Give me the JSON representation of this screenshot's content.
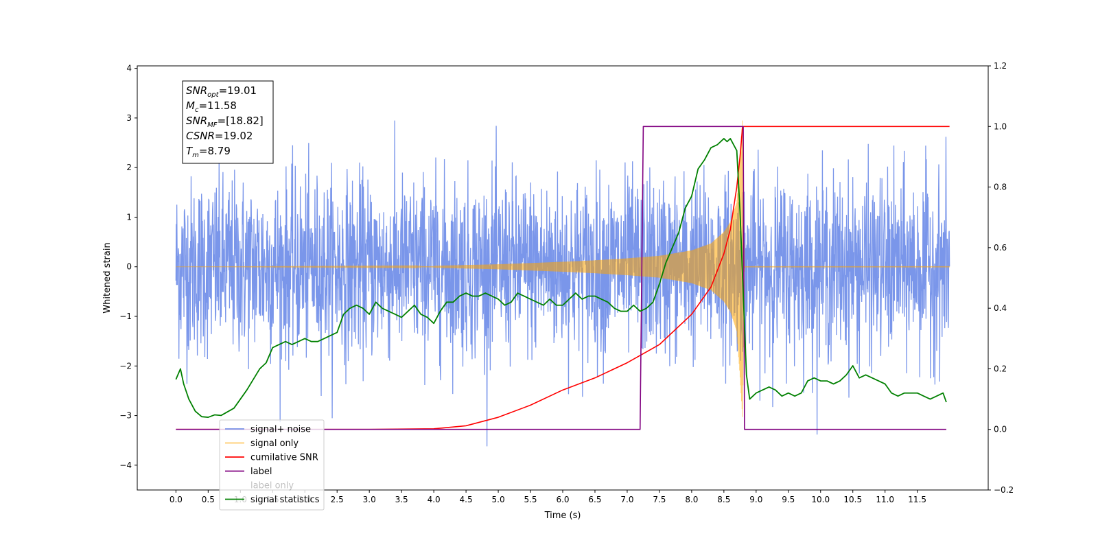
{
  "chart_data": {
    "type": "line",
    "xlabel": "Time (s)",
    "ylabel": "Whitened strain",
    "xlim": [
      -0.6,
      12.6
    ],
    "ylim": [
      -4.5,
      4.05
    ],
    "y2lim": [
      -0.2,
      1.2
    ],
    "x_ticks": [
      0.0,
      0.5,
      1.0,
      1.5,
      2.0,
      2.5,
      3.0,
      3.5,
      4.0,
      4.5,
      5.0,
      5.5,
      6.0,
      6.5,
      7.0,
      7.5,
      8.0,
      8.5,
      9.0,
      9.5,
      10.0,
      10.5,
      11.0,
      11.5
    ],
    "x_tick_labels": [
      "0.0",
      "0.5",
      "1.0",
      "1.5",
      "2.0",
      "2.5",
      "3.0",
      "3.5",
      "4.0",
      "4.5",
      "5.0",
      "5.5",
      "6.0",
      "6.5",
      "7.0",
      "7.5",
      "8.0",
      "8.5",
      "9.0",
      "9.5",
      "10.0",
      "10.5",
      "11.0",
      "11.5"
    ],
    "y_ticks": [
      -4,
      -3,
      -2,
      -1,
      0,
      1,
      2,
      3,
      4
    ],
    "y_tick_labels": [
      "−4",
      "−3",
      "−2",
      "−1",
      "0",
      "1",
      "2",
      "3",
      "4"
    ],
    "y2_ticks": [
      -0.2,
      0.0,
      0.2,
      0.4,
      0.6,
      0.8,
      1.0,
      1.2
    ],
    "y2_tick_labels": [
      "−0.2",
      "0.0",
      "0.2",
      "0.4",
      "0.6",
      "0.8",
      "1.0",
      "1.2"
    ],
    "grid": false,
    "legend_position": "lower-left",
    "annotation": [
      {
        "base": "SNR",
        "sub": "opt",
        "value": "=19.01"
      },
      {
        "base": "M",
        "sub": "c",
        "value": "=11.58"
      },
      {
        "base": "SNR",
        "sub": "MF",
        "value": "=[18.82]"
      },
      {
        "base": "CSNR",
        "sub": "",
        "value": "=19.02"
      },
      {
        "base": "T",
        "sub": "m",
        "value": "=8.79"
      }
    ],
    "series": [
      {
        "name": "signal+ noise",
        "color": "#4169e1",
        "axis": "left",
        "t_range": [
          0.0,
          12.0
        ],
        "noise_std": 0.9,
        "typical_range": [
          -2.0,
          2.0
        ],
        "max": 3.67,
        "min": -4.1
      },
      {
        "name": "signal only",
        "color": "#ffa500",
        "axis": "left",
        "t_range": [
          0.0,
          12.0
        ],
        "chirp_amplitude": {
          "t": [
            4.0,
            5.0,
            6.0,
            6.5,
            7.0,
            7.5,
            8.0,
            8.3,
            8.5,
            8.6,
            8.7,
            8.75,
            8.79,
            8.82
          ],
          "a": [
            0.02,
            0.05,
            0.1,
            0.13,
            0.17,
            0.22,
            0.33,
            0.47,
            0.7,
            0.9,
            1.3,
            2.2,
            3.05,
            0.0
          ]
        }
      },
      {
        "name": "cumilative SNR",
        "color": "#ff0000",
        "axis": "right",
        "x": [
          0.0,
          3.0,
          4.0,
          4.5,
          5.0,
          5.5,
          6.0,
          6.5,
          7.0,
          7.5,
          8.0,
          8.3,
          8.5,
          8.6,
          8.7,
          8.75,
          8.79,
          12.0
        ],
        "y": [
          0.0,
          0.0,
          0.002,
          0.012,
          0.04,
          0.08,
          0.13,
          0.17,
          0.22,
          0.28,
          0.38,
          0.47,
          0.58,
          0.66,
          0.8,
          0.9,
          1.0,
          1.0
        ]
      },
      {
        "name": "label",
        "color": "#800080",
        "axis": "right",
        "x": [
          0.0,
          7.2,
          7.25,
          8.8,
          8.82,
          11.95
        ],
        "y": [
          0.0,
          0.0,
          1.0,
          1.0,
          0.0,
          0.0
        ]
      },
      {
        "name": "label only",
        "color": "#ffffff",
        "axis": "right",
        "hidden": true
      },
      {
        "name": "signal statistics",
        "color": "#008000",
        "axis": "right",
        "x": [
          0.0,
          0.07,
          0.12,
          0.2,
          0.3,
          0.4,
          0.5,
          0.6,
          0.7,
          0.9,
          1.1,
          1.3,
          1.4,
          1.5,
          1.6,
          1.7,
          1.8,
          1.9,
          2.0,
          2.1,
          2.2,
          2.3,
          2.4,
          2.5,
          2.6,
          2.7,
          2.8,
          2.9,
          3.0,
          3.1,
          3.2,
          3.3,
          3.4,
          3.5,
          3.6,
          3.7,
          3.8,
          3.9,
          4.0,
          4.1,
          4.2,
          4.3,
          4.4,
          4.5,
          4.6,
          4.7,
          4.8,
          4.9,
          5.0,
          5.1,
          5.2,
          5.3,
          5.4,
          5.5,
          5.6,
          5.7,
          5.8,
          5.9,
          6.0,
          6.1,
          6.2,
          6.3,
          6.4,
          6.5,
          6.6,
          6.7,
          6.8,
          6.9,
          7.0,
          7.1,
          7.2,
          7.3,
          7.4,
          7.5,
          7.6,
          7.7,
          7.8,
          7.9,
          8.0,
          8.1,
          8.2,
          8.3,
          8.4,
          8.5,
          8.55,
          8.6,
          8.7,
          8.75,
          8.8,
          8.85,
          8.9,
          8.95,
          9.0,
          9.1,
          9.2,
          9.3,
          9.4,
          9.5,
          9.6,
          9.7,
          9.8,
          9.9,
          10.0,
          10.1,
          10.2,
          10.3,
          10.4,
          10.5,
          10.6,
          10.7,
          10.8,
          10.9,
          11.0,
          11.1,
          11.2,
          11.3,
          11.4,
          11.5,
          11.6,
          11.7,
          11.8,
          11.9,
          11.95
        ],
        "y": [
          0.165,
          0.2,
          0.15,
          0.1,
          0.06,
          0.042,
          0.04,
          0.048,
          0.046,
          0.07,
          0.13,
          0.2,
          0.22,
          0.27,
          0.28,
          0.29,
          0.28,
          0.29,
          0.3,
          0.29,
          0.29,
          0.3,
          0.31,
          0.32,
          0.38,
          0.4,
          0.41,
          0.4,
          0.38,
          0.42,
          0.4,
          0.39,
          0.38,
          0.37,
          0.39,
          0.41,
          0.38,
          0.37,
          0.35,
          0.39,
          0.42,
          0.42,
          0.44,
          0.45,
          0.44,
          0.44,
          0.45,
          0.44,
          0.43,
          0.41,
          0.42,
          0.45,
          0.44,
          0.43,
          0.42,
          0.41,
          0.43,
          0.41,
          0.41,
          0.43,
          0.45,
          0.43,
          0.44,
          0.44,
          0.43,
          0.42,
          0.4,
          0.39,
          0.39,
          0.41,
          0.39,
          0.4,
          0.42,
          0.48,
          0.55,
          0.6,
          0.65,
          0.73,
          0.77,
          0.86,
          0.89,
          0.93,
          0.94,
          0.96,
          0.95,
          0.96,
          0.92,
          0.72,
          0.45,
          0.18,
          0.1,
          0.11,
          0.12,
          0.13,
          0.14,
          0.13,
          0.11,
          0.12,
          0.11,
          0.12,
          0.16,
          0.17,
          0.16,
          0.16,
          0.15,
          0.16,
          0.18,
          0.21,
          0.17,
          0.18,
          0.17,
          0.16,
          0.15,
          0.12,
          0.11,
          0.12,
          0.12,
          0.12,
          0.11,
          0.1,
          0.11,
          0.12,
          0.09
        ]
      }
    ]
  }
}
